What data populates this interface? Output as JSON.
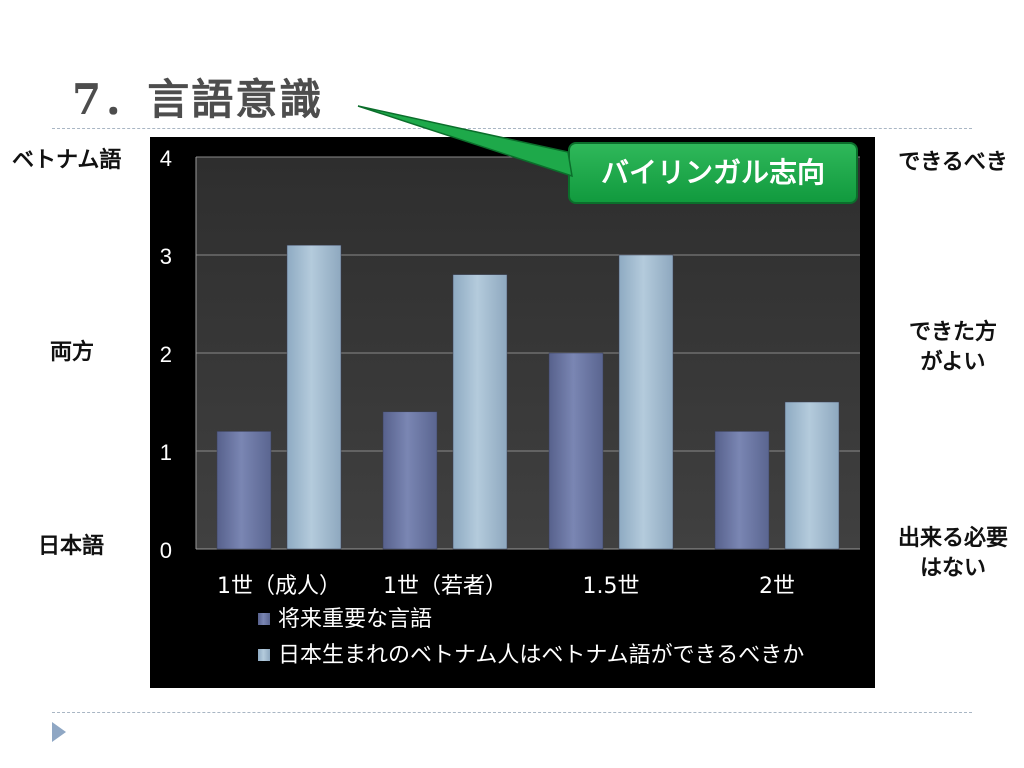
{
  "slide": {
    "title": "7．言語意識",
    "callout": "バイリンガル志向",
    "left_labels": {
      "top": "ベトナム語",
      "middle": "両方",
      "bottom": "日本語"
    },
    "right_labels": {
      "top": "できるべき",
      "middle": "できた方\nがよい",
      "bottom": "出来る必要\nはない"
    }
  },
  "colors": {
    "series1": "#6e7aa8",
    "series2": "#a4bed4",
    "callout": "#1ea94a",
    "plot_background": "#333333"
  },
  "chart_data": {
    "type": "bar",
    "categories": [
      "1世（成人）",
      "1世（若者）",
      "1.5世",
      "2世"
    ],
    "series": [
      {
        "name": "将来重要な言語",
        "values": [
          1.2,
          1.4,
          2.0,
          1.2
        ]
      },
      {
        "name": "日本生まれのベトナム人はベトナム語ができるべきか",
        "values": [
          3.1,
          2.8,
          3.0,
          1.5
        ]
      }
    ],
    "ylim": [
      0,
      4
    ],
    "yticks": [
      "0",
      "1",
      "2",
      "3",
      "4"
    ],
    "grid": true,
    "legend": "bottom"
  }
}
